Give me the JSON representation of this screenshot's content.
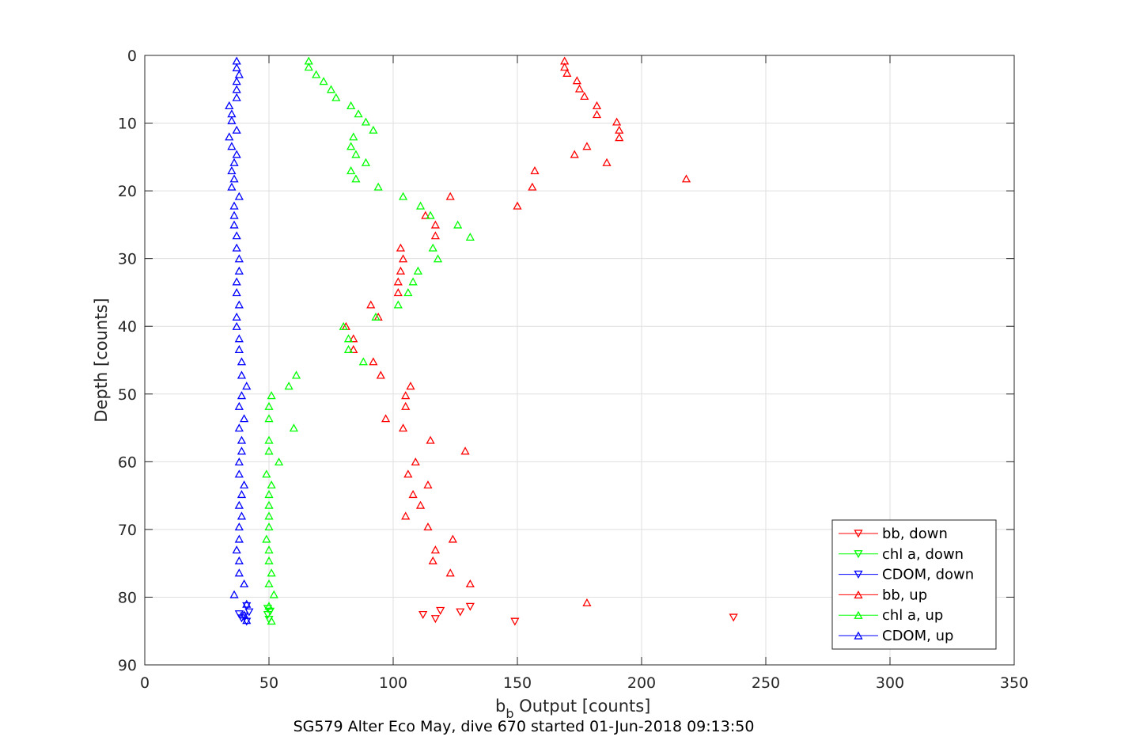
{
  "chart_data": {
    "type": "scatter",
    "title": "SG579 Alter Eco May, dive 670 started 01-Jun-2018 09:13:50",
    "xlabel_main": "b",
    "xlabel_sub": "b",
    "xlabel_rest": " Output [counts]",
    "ylabel": "Depth [counts]",
    "xlim": [
      0,
      350
    ],
    "ylim": [
      0,
      90
    ],
    "y_reversed": true,
    "grid": true,
    "legend_placement": "bottom-right",
    "x_ticks": [
      0,
      50,
      100,
      150,
      200,
      250,
      300,
      350
    ],
    "y_ticks": [
      0,
      10,
      20,
      30,
      40,
      50,
      60,
      70,
      80,
      90
    ],
    "series": [
      {
        "name": "bb, down",
        "color": "#ff0000",
        "marker": "triangle-down",
        "points": [
          [
            149,
            83.6
          ],
          [
            112,
            82.6
          ],
          [
            117,
            83.2
          ],
          [
            119,
            82.0
          ],
          [
            127,
            82.2
          ],
          [
            131,
            81.4
          ],
          [
            237,
            83.0
          ]
        ]
      },
      {
        "name": "chl a, down",
        "color": "#00ff00",
        "marker": "triangle-down",
        "points": [
          [
            50,
            83.3
          ],
          [
            49.5,
            82.6
          ],
          [
            50.5,
            82.1
          ],
          [
            49.5,
            81.7
          ]
        ]
      },
      {
        "name": "CDOM, down",
        "color": "#0000ff",
        "marker": "triangle-down",
        "points": [
          [
            38,
            82.5
          ],
          [
            39,
            83.1
          ],
          [
            41,
            83.6
          ],
          [
            42,
            82.2
          ],
          [
            40,
            82.8
          ],
          [
            41,
            81.3
          ]
        ]
      },
      {
        "name": "bb, up",
        "color": "#ff0000",
        "marker": "triangle-up",
        "points": [
          [
            169,
            0.8
          ],
          [
            169,
            1.7
          ],
          [
            170,
            2.6
          ],
          [
            174,
            3.7
          ],
          [
            175,
            4.9
          ],
          [
            177,
            6.0
          ],
          [
            182,
            7.4
          ],
          [
            182,
            8.7
          ],
          [
            190,
            9.8
          ],
          [
            191,
            11.0
          ],
          [
            191,
            12.1
          ],
          [
            178,
            13.4
          ],
          [
            173,
            14.6
          ],
          [
            186,
            15.8
          ],
          [
            157,
            17.0
          ],
          [
            218,
            18.2
          ],
          [
            156,
            19.4
          ],
          [
            123,
            20.8
          ],
          [
            150,
            22.2
          ],
          [
            113,
            23.6
          ],
          [
            117,
            25.0
          ],
          [
            117,
            26.6
          ],
          [
            103,
            28.4
          ],
          [
            104,
            30.0
          ],
          [
            103,
            31.8
          ],
          [
            102,
            33.4
          ],
          [
            102,
            35.0
          ],
          [
            91,
            36.8
          ],
          [
            94,
            38.6
          ],
          [
            81,
            40.0
          ],
          [
            84,
            41.8
          ],
          [
            84,
            43.4
          ],
          [
            92,
            45.2
          ],
          [
            95,
            47.2
          ],
          [
            107,
            48.8
          ],
          [
            105,
            50.2
          ],
          [
            105,
            51.8
          ],
          [
            97,
            53.6
          ],
          [
            104,
            55.0
          ],
          [
            115,
            56.8
          ],
          [
            129,
            58.4
          ],
          [
            109,
            60.0
          ],
          [
            106,
            61.8
          ],
          [
            114,
            63.4
          ],
          [
            108,
            64.8
          ],
          [
            111,
            66.4
          ],
          [
            105,
            68.0
          ],
          [
            114,
            69.6
          ],
          [
            124,
            71.4
          ],
          [
            117,
            73.0
          ],
          [
            116,
            74.6
          ],
          [
            123,
            76.4
          ],
          [
            131,
            78.0
          ],
          [
            178,
            80.8
          ]
        ]
      },
      {
        "name": "chl a, up",
        "color": "#00ff00",
        "marker": "triangle-up",
        "points": [
          [
            66,
            0.8
          ],
          [
            66,
            1.7
          ],
          [
            69,
            2.8
          ],
          [
            72,
            3.8
          ],
          [
            75,
            5.0
          ],
          [
            77,
            6.2
          ],
          [
            83,
            7.4
          ],
          [
            86,
            8.6
          ],
          [
            89,
            9.8
          ],
          [
            92,
            11.0
          ],
          [
            84,
            12.0
          ],
          [
            83,
            13.4
          ],
          [
            85,
            14.6
          ],
          [
            89,
            15.8
          ],
          [
            83,
            17.0
          ],
          [
            85,
            18.2
          ],
          [
            94,
            19.4
          ],
          [
            104,
            20.8
          ],
          [
            111,
            22.2
          ],
          [
            115,
            23.6
          ],
          [
            126,
            25.0
          ],
          [
            131,
            26.8
          ],
          [
            116,
            28.4
          ],
          [
            118,
            30.0
          ],
          [
            110,
            31.8
          ],
          [
            108,
            33.4
          ],
          [
            106,
            35.0
          ],
          [
            102,
            36.8
          ],
          [
            93,
            38.6
          ],
          [
            80,
            40.0
          ],
          [
            82,
            41.8
          ],
          [
            82,
            43.4
          ],
          [
            88,
            45.2
          ],
          [
            61,
            47.2
          ],
          [
            58,
            48.8
          ],
          [
            51,
            50.2
          ],
          [
            50,
            51.8
          ],
          [
            50,
            53.6
          ],
          [
            60,
            55.0
          ],
          [
            50,
            56.8
          ],
          [
            50,
            58.4
          ],
          [
            54,
            60.0
          ],
          [
            49,
            61.8
          ],
          [
            51,
            63.4
          ],
          [
            50,
            64.8
          ],
          [
            50,
            66.4
          ],
          [
            50,
            68.0
          ],
          [
            50,
            69.6
          ],
          [
            49,
            71.4
          ],
          [
            50,
            73.0
          ],
          [
            50,
            74.6
          ],
          [
            51,
            76.4
          ],
          [
            50,
            78.0
          ],
          [
            52,
            79.6
          ],
          [
            50,
            81.3
          ],
          [
            51,
            83.5
          ]
        ]
      },
      {
        "name": "CDOM, up",
        "color": "#0000ff",
        "marker": "triangle-up",
        "points": [
          [
            37,
            0.8
          ],
          [
            37,
            1.8
          ],
          [
            38,
            2.8
          ],
          [
            37,
            3.8
          ],
          [
            37,
            5.0
          ],
          [
            37,
            6.2
          ],
          [
            34,
            7.4
          ],
          [
            35,
            8.6
          ],
          [
            35,
            9.6
          ],
          [
            37,
            11.0
          ],
          [
            34,
            12.0
          ],
          [
            35,
            13.4
          ],
          [
            37,
            14.6
          ],
          [
            36,
            15.8
          ],
          [
            35,
            17.0
          ],
          [
            36,
            18.2
          ],
          [
            35,
            19.4
          ],
          [
            38,
            20.8
          ],
          [
            36,
            22.2
          ],
          [
            36,
            23.6
          ],
          [
            36,
            25.0
          ],
          [
            37,
            26.6
          ],
          [
            37,
            28.4
          ],
          [
            38,
            30.0
          ],
          [
            38,
            31.8
          ],
          [
            37,
            33.4
          ],
          [
            37,
            35.0
          ],
          [
            38,
            36.8
          ],
          [
            37,
            38.6
          ],
          [
            37,
            40.0
          ],
          [
            38,
            41.8
          ],
          [
            38,
            43.4
          ],
          [
            39,
            45.2
          ],
          [
            39,
            47.2
          ],
          [
            41,
            48.8
          ],
          [
            39,
            50.2
          ],
          [
            38,
            51.8
          ],
          [
            40,
            53.6
          ],
          [
            38,
            55.0
          ],
          [
            39,
            56.8
          ],
          [
            39,
            58.4
          ],
          [
            38,
            60.0
          ],
          [
            38,
            61.8
          ],
          [
            40,
            63.4
          ],
          [
            39,
            64.8
          ],
          [
            38,
            66.4
          ],
          [
            39,
            68.0
          ],
          [
            38,
            69.6
          ],
          [
            38,
            71.4
          ],
          [
            37,
            73.0
          ],
          [
            38,
            74.6
          ],
          [
            38,
            76.4
          ],
          [
            40,
            78.0
          ],
          [
            36,
            79.6
          ],
          [
            41,
            81.0
          ],
          [
            40,
            82.6
          ],
          [
            41,
            83.4
          ]
        ]
      }
    ]
  }
}
